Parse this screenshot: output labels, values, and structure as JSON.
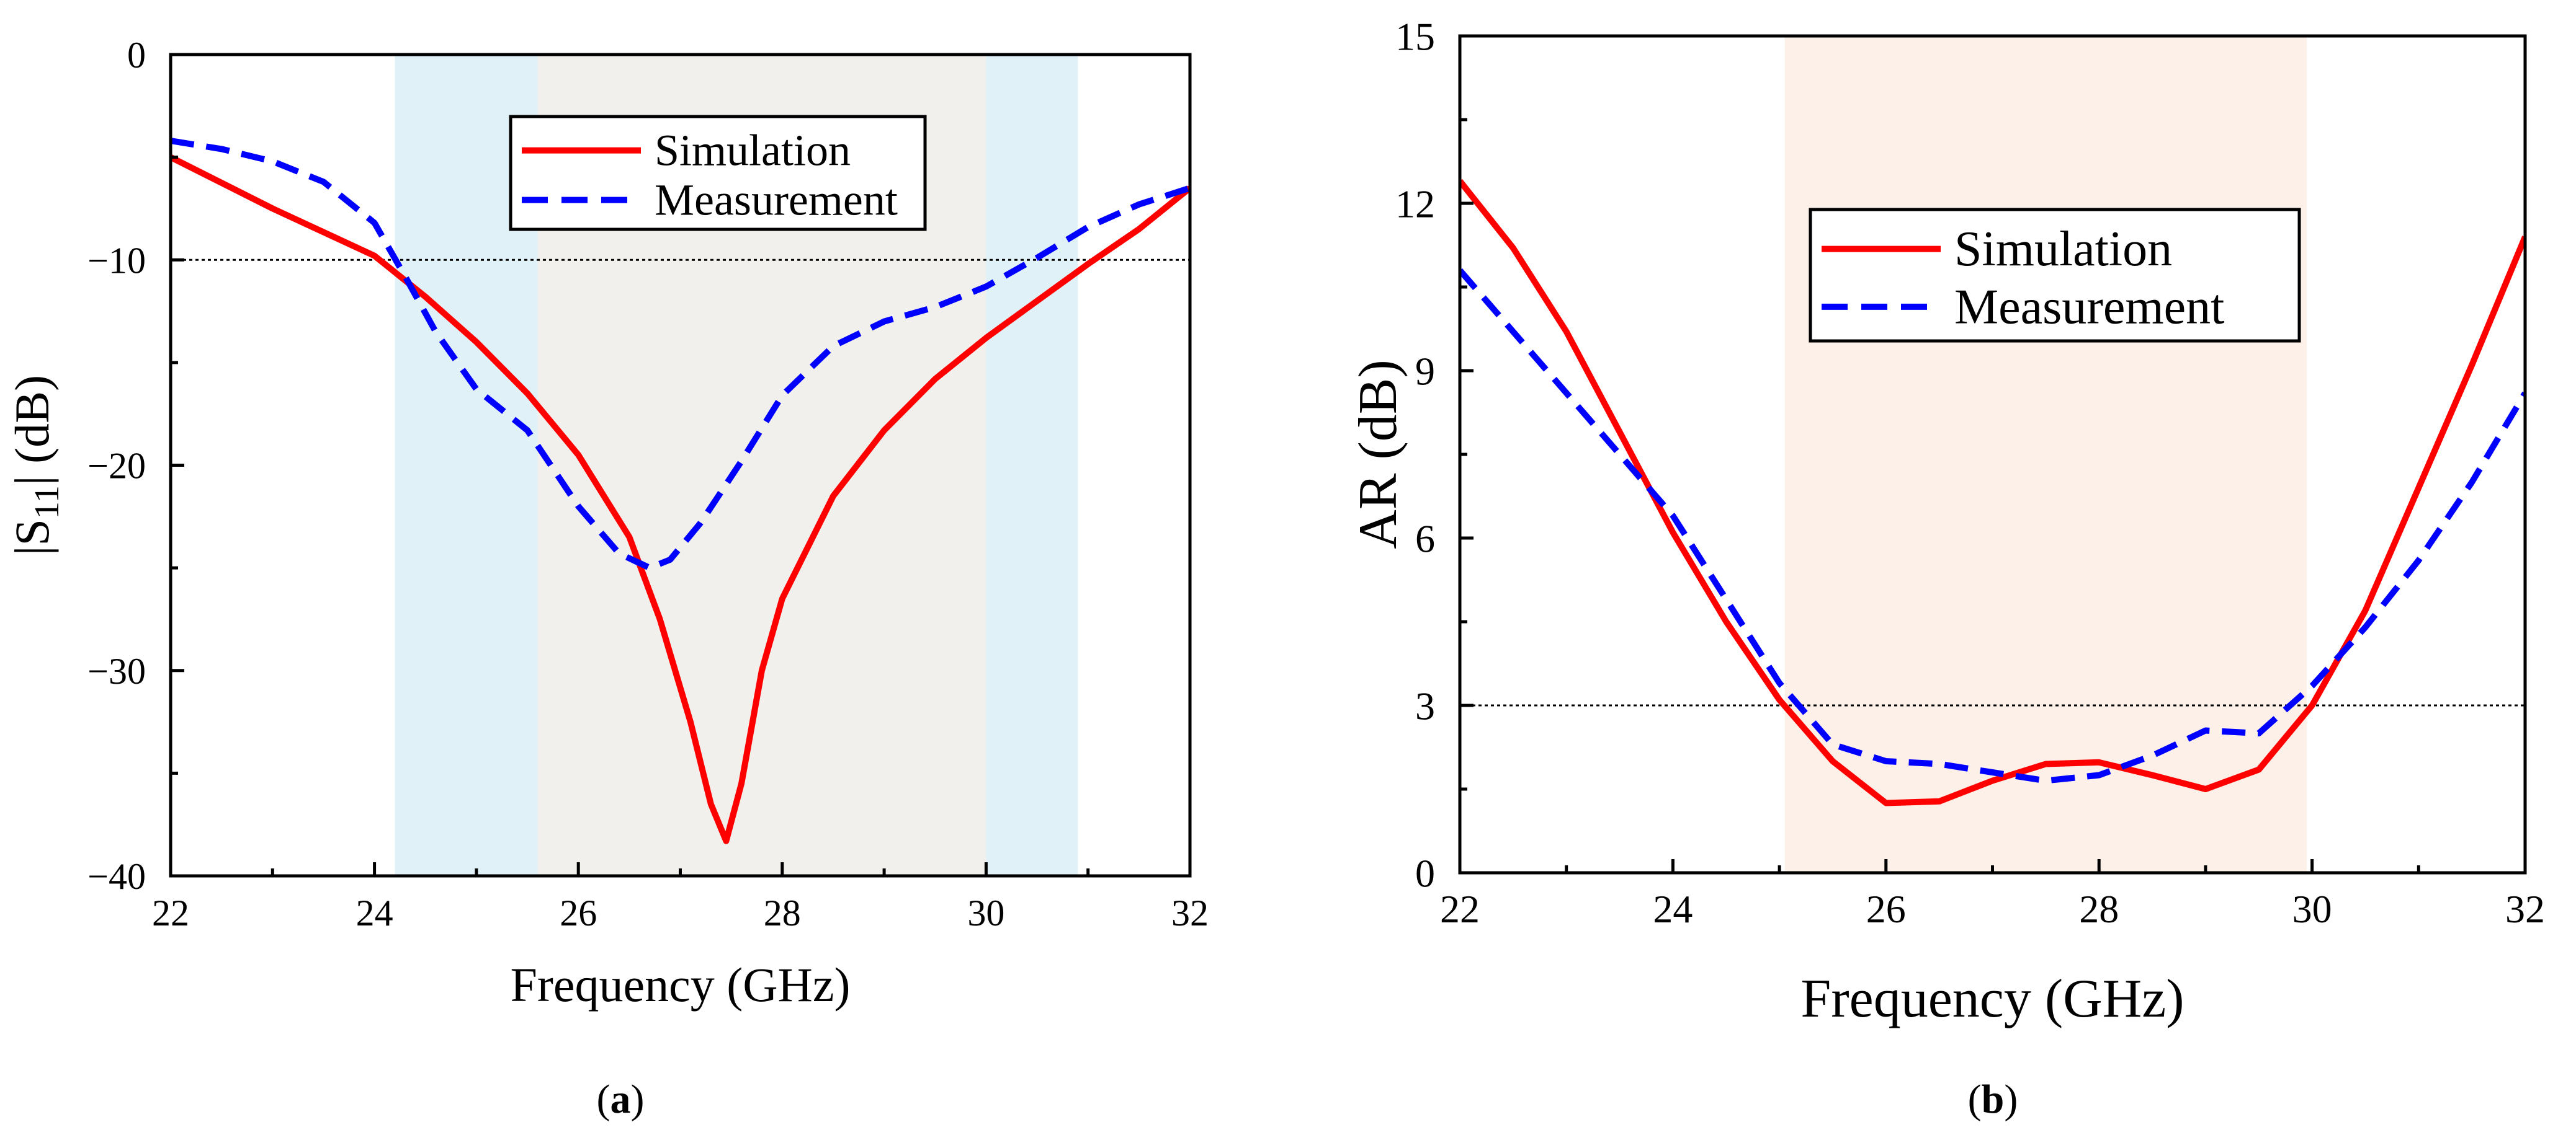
{
  "chart_data": [
    {
      "panel_label": "a",
      "type": "line",
      "xlabel": "Frequency (GHz)",
      "ylabel": {
        "pre": "|S",
        "sub": "11",
        "post": "| (dB)"
      },
      "xlim": [
        22,
        32
      ],
      "ylim": [
        -40,
        0
      ],
      "xticks": [
        22,
        24,
        26,
        28,
        30,
        32
      ],
      "yticks": [
        0,
        -10,
        -20,
        -30,
        -40
      ],
      "ytick_labels": [
        "0",
        "−10",
        "−20",
        "−30",
        "−40"
      ],
      "reference_line": {
        "y": -10,
        "style": "dotted"
      },
      "bands": [
        {
          "x": [
            24.2,
            30.9
          ],
          "color": "#e1f1f8"
        },
        {
          "x": [
            25.6,
            30.0
          ],
          "color": "#f2f0ec"
        }
      ],
      "legend": {
        "position": "top-center"
      },
      "series": [
        {
          "name": "Simulation",
          "color": "#ff0000",
          "dash": "solid",
          "x": [
            22,
            23,
            24,
            24.5,
            25,
            25.5,
            26,
            26.5,
            26.8,
            27.1,
            27.3,
            27.45,
            27.6,
            27.8,
            28,
            28.5,
            29,
            29.5,
            30,
            30.5,
            31,
            31.5,
            32
          ],
          "y": [
            -5.0,
            -7.5,
            -9.8,
            -11.8,
            -14.0,
            -16.5,
            -19.5,
            -23.5,
            -27.5,
            -32.5,
            -36.5,
            -38.3,
            -35.5,
            -30.0,
            -26.5,
            -21.5,
            -18.3,
            -15.8,
            -13.8,
            -12.0,
            -10.2,
            -8.5,
            -6.5
          ]
        },
        {
          "name": "Measurement",
          "color": "#0000ff",
          "dash": "dashed",
          "x": [
            22,
            22.5,
            23,
            23.5,
            24,
            24.3,
            24.6,
            25,
            25.5,
            26,
            26.4,
            26.7,
            26.9,
            27.2,
            27.6,
            28,
            28.5,
            29,
            29.5,
            30,
            30.5,
            31,
            31.5,
            32
          ],
          "y": [
            -4.2,
            -4.6,
            -5.2,
            -6.2,
            -8.2,
            -10.8,
            -13.5,
            -16.3,
            -18.3,
            -22.0,
            -24.3,
            -25.0,
            -24.6,
            -22.8,
            -19.8,
            -16.6,
            -14.2,
            -13.0,
            -12.3,
            -11.3,
            -9.9,
            -8.4,
            -7.3,
            -6.5
          ]
        }
      ]
    },
    {
      "panel_label": "b",
      "type": "line",
      "xlabel": "Frequency (GHz)",
      "ylabel": "AR (dB)",
      "xlim": [
        22,
        32
      ],
      "ylim": [
        0,
        15
      ],
      "xticks": [
        22,
        24,
        26,
        28,
        30,
        32
      ],
      "yticks": [
        0,
        3,
        6,
        9,
        12,
        15
      ],
      "ytick_labels": [
        "0",
        "3",
        "6",
        "9",
        "12",
        "15"
      ],
      "reference_line": {
        "y": 3,
        "style": "dotted"
      },
      "bands": [
        {
          "x": [
            25.05,
            29.95
          ],
          "color": "#fcf0e8"
        }
      ],
      "legend": {
        "position": "top-center"
      },
      "series": [
        {
          "name": "Simulation",
          "color": "#ff0000",
          "dash": "solid",
          "x": [
            22,
            22.5,
            23,
            23.5,
            24,
            24.5,
            25,
            25.5,
            26,
            26.5,
            27,
            27.5,
            28,
            28.5,
            29,
            29.5,
            30,
            30.5,
            31,
            31.5,
            32
          ],
          "y": [
            12.4,
            11.2,
            9.7,
            7.9,
            6.1,
            4.5,
            3.1,
            2.0,
            1.25,
            1.28,
            1.65,
            1.95,
            1.98,
            1.75,
            1.5,
            1.85,
            3.0,
            4.7,
            6.9,
            9.1,
            11.4
          ]
        },
        {
          "name": "Measurement",
          "color": "#0000ff",
          "dash": "dashed",
          "x": [
            22,
            22.5,
            23,
            23.5,
            24,
            24.5,
            25,
            25.5,
            26,
            26.5,
            27,
            27.5,
            28,
            28.5,
            29,
            29.5,
            30,
            30.5,
            31,
            31.5,
            32
          ],
          "y": [
            10.8,
            9.7,
            8.6,
            7.5,
            6.4,
            4.9,
            3.4,
            2.3,
            2.0,
            1.95,
            1.8,
            1.65,
            1.75,
            2.1,
            2.55,
            2.5,
            3.35,
            4.4,
            5.6,
            7.0,
            8.6
          ]
        }
      ]
    }
  ]
}
